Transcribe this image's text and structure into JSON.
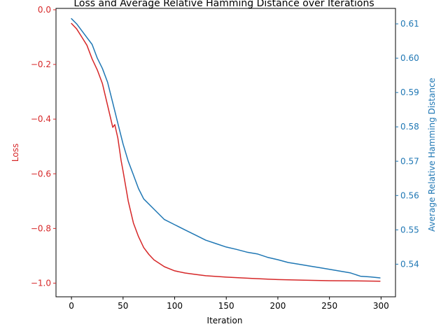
{
  "chart_data": {
    "type": "line",
    "title": "Loss and Average Relative Hamming Distance over Iterations",
    "xlabel": "Iteration",
    "xlim": [
      -15,
      314
    ],
    "xticks": [
      0,
      50,
      100,
      150,
      200,
      250,
      300
    ],
    "grid": false,
    "legend": "none",
    "left_axis": {
      "label": "Loss",
      "color": "#d62728",
      "ylim": [
        -1.05,
        0.005
      ],
      "ticks": [
        -1.0,
        -0.8,
        -0.6,
        -0.4,
        -0.2,
        0.0
      ],
      "tick_labels": [
        "−1.0",
        "−0.8",
        "−0.6",
        "−0.4",
        "−0.2",
        "0.0"
      ]
    },
    "right_axis": {
      "label": "Average Relative Hamming Distance",
      "color": "#1f77b4",
      "ylim": [
        0.5305,
        0.6145
      ],
      "ticks": [
        0.54,
        0.55,
        0.56,
        0.57,
        0.58,
        0.59,
        0.6,
        0.61
      ],
      "tick_labels": [
        "0.54",
        "0.55",
        "0.56",
        "0.57",
        "0.58",
        "0.59",
        "0.60",
        "0.61"
      ]
    },
    "series": [
      {
        "axis": "left",
        "color": "#d62728",
        "x": [
          0,
          5,
          10,
          15,
          20,
          25,
          30,
          35,
          40,
          42,
          45,
          48,
          50,
          55,
          60,
          65,
          70,
          75,
          80,
          90,
          100,
          110,
          120,
          130,
          150,
          175,
          200,
          225,
          250,
          275,
          299
        ],
        "y": [
          -0.05,
          -0.07,
          -0.1,
          -0.13,
          -0.18,
          -0.22,
          -0.27,
          -0.35,
          -0.43,
          -0.42,
          -0.47,
          -0.55,
          -0.59,
          -0.7,
          -0.78,
          -0.83,
          -0.87,
          -0.895,
          -0.915,
          -0.94,
          -0.955,
          -0.963,
          -0.968,
          -0.973,
          -0.978,
          -0.983,
          -0.987,
          -0.989,
          -0.991,
          -0.992,
          -0.993
        ]
      },
      {
        "axis": "right",
        "color": "#1f77b4",
        "x": [
          0,
          5,
          10,
          15,
          20,
          25,
          30,
          35,
          40,
          45,
          50,
          55,
          60,
          65,
          70,
          80,
          90,
          100,
          110,
          120,
          130,
          140,
          150,
          160,
          170,
          180,
          190,
          200,
          210,
          220,
          230,
          240,
          250,
          260,
          270,
          280,
          290,
          299
        ],
        "y": [
          0.6115,
          0.61,
          0.608,
          0.606,
          0.604,
          0.6,
          0.597,
          0.593,
          0.587,
          0.581,
          0.575,
          0.57,
          0.566,
          0.562,
          0.559,
          0.556,
          0.553,
          0.5515,
          0.55,
          0.5485,
          0.547,
          0.546,
          0.545,
          0.5443,
          0.5435,
          0.543,
          0.542,
          0.5413,
          0.5405,
          0.54,
          0.5395,
          0.539,
          0.5385,
          0.538,
          0.5375,
          0.5365,
          0.5363,
          0.536
        ]
      }
    ]
  }
}
